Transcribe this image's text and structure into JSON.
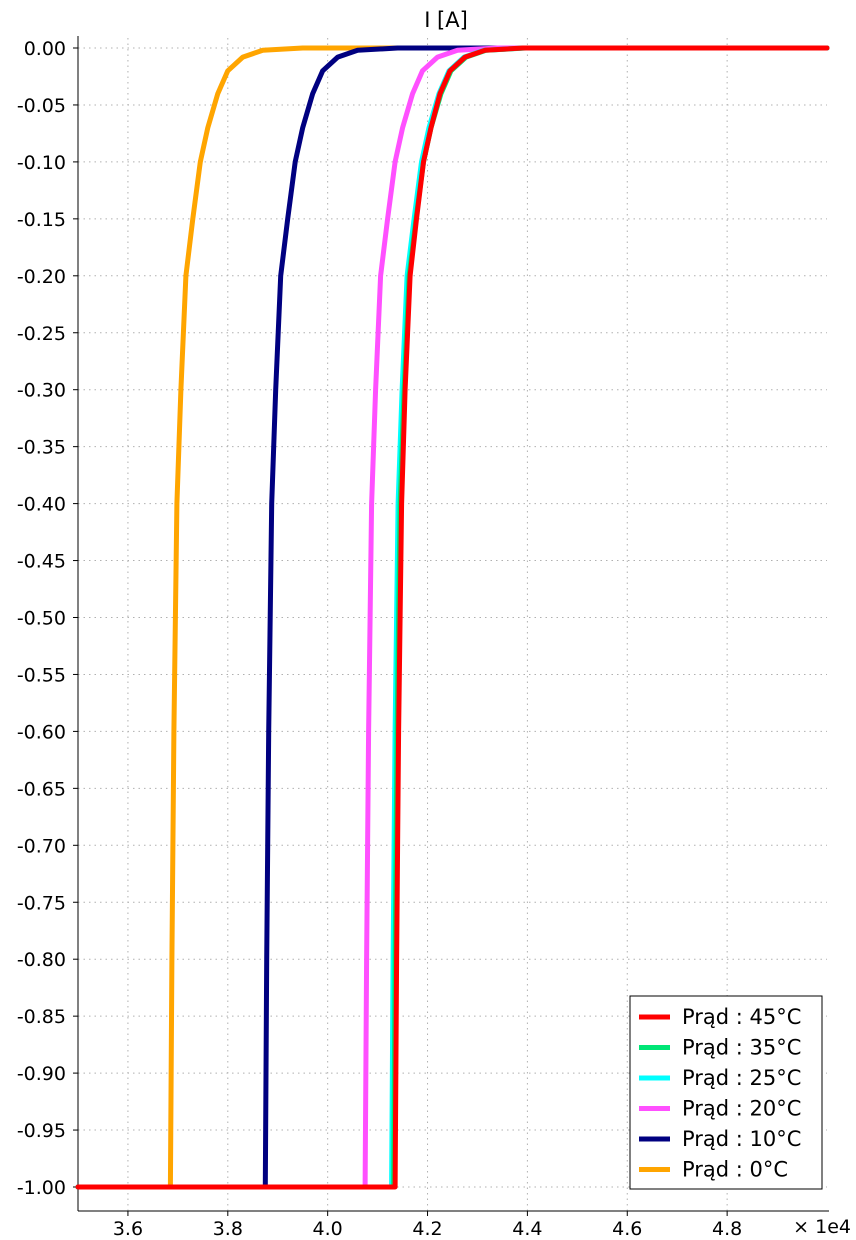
{
  "chart_data": {
    "type": "line",
    "title": "I [A]",
    "x_multiplier_label": "× 1e4",
    "xlim": [
      3.5,
      5.0
    ],
    "ylim": [
      -1.0,
      0.0
    ],
    "x_ticks": [
      "3.6",
      "3.8",
      "4.0",
      "4.2",
      "4.4",
      "4.6",
      "4.8"
    ],
    "y_ticks": [
      "0.00",
      "-0.05",
      "-0.10",
      "-0.15",
      "-0.20",
      "-0.25",
      "-0.30",
      "-0.35",
      "-0.40",
      "-0.45",
      "-0.50",
      "-0.55",
      "-0.60",
      "-0.65",
      "-0.70",
      "-0.75",
      "-0.80",
      "-0.85",
      "-0.90",
      "-0.95",
      "-1.00"
    ],
    "grid": true,
    "legend_position": "bottom-right",
    "series": [
      {
        "name": "Prąd : 0°C",
        "color": "#FFA500",
        "points": [
          [
            3.5,
            -1.0
          ],
          [
            3.685,
            -1.0
          ],
          [
            3.688,
            -0.8
          ],
          [
            3.692,
            -0.6
          ],
          [
            3.698,
            -0.4
          ],
          [
            3.706,
            -0.3
          ],
          [
            3.716,
            -0.2
          ],
          [
            3.73,
            -0.15
          ],
          [
            3.745,
            -0.1
          ],
          [
            3.76,
            -0.07
          ],
          [
            3.78,
            -0.04
          ],
          [
            3.8,
            -0.02
          ],
          [
            3.83,
            -0.008
          ],
          [
            3.87,
            -0.002
          ],
          [
            3.95,
            0.0
          ],
          [
            5.0,
            0.0
          ]
        ]
      },
      {
        "name": "Prąd : 10°C",
        "color": "#000080",
        "points": [
          [
            3.5,
            -1.0
          ],
          [
            3.875,
            -1.0
          ],
          [
            3.878,
            -0.8
          ],
          [
            3.882,
            -0.6
          ],
          [
            3.888,
            -0.4
          ],
          [
            3.896,
            -0.3
          ],
          [
            3.906,
            -0.2
          ],
          [
            3.92,
            -0.15
          ],
          [
            3.935,
            -0.1
          ],
          [
            3.95,
            -0.07
          ],
          [
            3.97,
            -0.04
          ],
          [
            3.99,
            -0.02
          ],
          [
            4.02,
            -0.008
          ],
          [
            4.06,
            -0.002
          ],
          [
            4.14,
            0.0
          ],
          [
            5.0,
            0.0
          ]
        ]
      },
      {
        "name": "Prąd : 20°C",
        "color": "#FF50FF",
        "points": [
          [
            3.5,
            -1.0
          ],
          [
            4.075,
            -1.0
          ],
          [
            4.078,
            -0.8
          ],
          [
            4.082,
            -0.6
          ],
          [
            4.088,
            -0.4
          ],
          [
            4.096,
            -0.3
          ],
          [
            4.106,
            -0.2
          ],
          [
            4.12,
            -0.15
          ],
          [
            4.135,
            -0.1
          ],
          [
            4.15,
            -0.07
          ],
          [
            4.17,
            -0.04
          ],
          [
            4.19,
            -0.02
          ],
          [
            4.22,
            -0.008
          ],
          [
            4.26,
            -0.002
          ],
          [
            4.34,
            0.0
          ],
          [
            5.0,
            0.0
          ]
        ]
      },
      {
        "name": "Prąd : 25°C",
        "color": "#00FFFF",
        "points": [
          [
            3.5,
            -1.0
          ],
          [
            4.128,
            -1.0
          ],
          [
            4.131,
            -0.8
          ],
          [
            4.135,
            -0.6
          ],
          [
            4.141,
            -0.4
          ],
          [
            4.149,
            -0.3
          ],
          [
            4.159,
            -0.2
          ],
          [
            4.173,
            -0.15
          ],
          [
            4.188,
            -0.1
          ],
          [
            4.203,
            -0.07
          ],
          [
            4.223,
            -0.04
          ],
          [
            4.243,
            -0.02
          ],
          [
            4.273,
            -0.008
          ],
          [
            4.313,
            -0.002
          ],
          [
            4.393,
            0.0
          ],
          [
            5.0,
            0.0
          ]
        ]
      },
      {
        "name": "Prąd : 35°C",
        "color": "#00E676",
        "points": [
          [
            3.5,
            -1.0
          ],
          [
            4.132,
            -1.0
          ],
          [
            4.135,
            -0.8
          ],
          [
            4.139,
            -0.6
          ],
          [
            4.145,
            -0.4
          ],
          [
            4.153,
            -0.3
          ],
          [
            4.163,
            -0.2
          ],
          [
            4.177,
            -0.15
          ],
          [
            4.192,
            -0.1
          ],
          [
            4.207,
            -0.07
          ],
          [
            4.227,
            -0.04
          ],
          [
            4.247,
            -0.02
          ],
          [
            4.277,
            -0.008
          ],
          [
            4.317,
            -0.002
          ],
          [
            4.397,
            0.0
          ],
          [
            5.0,
            0.0
          ]
        ]
      },
      {
        "name": "Prąd : 45°C",
        "color": "#FF0000",
        "points": [
          [
            3.5,
            -1.0
          ],
          [
            4.135,
            -1.0
          ],
          [
            4.138,
            -0.8
          ],
          [
            4.142,
            -0.6
          ],
          [
            4.148,
            -0.4
          ],
          [
            4.155,
            -0.3
          ],
          [
            4.165,
            -0.2
          ],
          [
            4.178,
            -0.15
          ],
          [
            4.192,
            -0.1
          ],
          [
            4.207,
            -0.07
          ],
          [
            4.225,
            -0.04
          ],
          [
            4.245,
            -0.02
          ],
          [
            4.275,
            -0.008
          ],
          [
            4.315,
            -0.002
          ],
          [
            4.39,
            0.0
          ],
          [
            5.0,
            0.0
          ]
        ]
      }
    ]
  }
}
